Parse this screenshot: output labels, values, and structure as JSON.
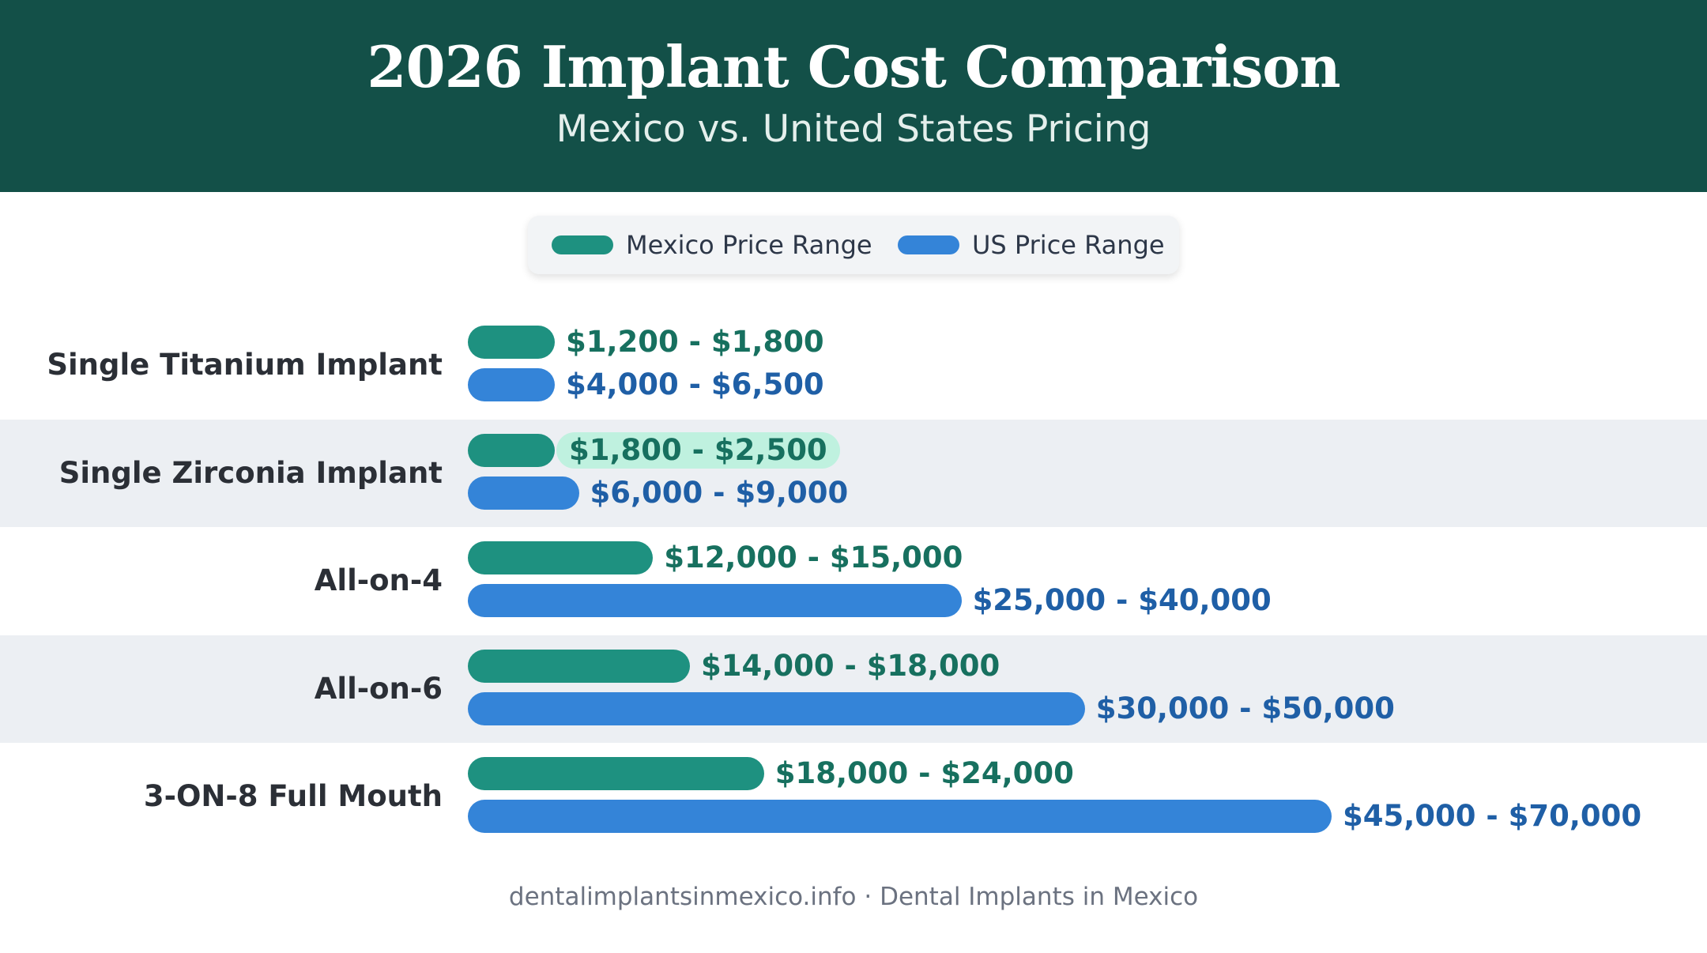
{
  "header": {
    "title": "2026 Implant Cost Comparison",
    "subtitle": "Mexico vs. United States Pricing"
  },
  "legend": {
    "mexico": "Mexico Price Range",
    "us": "US Price Range",
    "placement": "top-center"
  },
  "colors": {
    "header_bg": "#135048",
    "mexico": "#1e9180",
    "us": "#3484d8",
    "mexico_text": "#17705f",
    "us_text": "#1f5fa6",
    "highlight_bg": "#bff1df",
    "band": "#eceff3"
  },
  "chart_data": {
    "type": "bar",
    "orientation": "horizontal",
    "title": "2026 Implant Cost Comparison",
    "subtitle": "Mexico vs. United States Pricing",
    "categories": [
      "Single Titanium Implant",
      "Single Zirconia Implant",
      "All-on-4",
      "All-on-6",
      "3-ON-8 Full Mouth"
    ],
    "series": [
      {
        "name": "Mexico Price Range",
        "ranges": [
          [
            1200,
            1800
          ],
          [
            1800,
            2500
          ],
          [
            12000,
            15000
          ],
          [
            14000,
            18000
          ],
          [
            18000,
            24000
          ]
        ],
        "labels": [
          "$1,200 - $1,800",
          "$1,800 - $2,500",
          "$12,000 - $15,000",
          "$14,000 - $18,000",
          "$18,000 - $24,000"
        ]
      },
      {
        "name": "US Price Range",
        "ranges": [
          [
            4000,
            6500
          ],
          [
            6000,
            9000
          ],
          [
            25000,
            40000
          ],
          [
            30000,
            50000
          ],
          [
            45000,
            70000
          ]
        ],
        "labels": [
          "$4,000 - $6,500",
          "$6,000 - $9,000",
          "$25,000 - $40,000",
          "$30,000 - $50,000",
          "$45,000 - $70,000"
        ]
      }
    ],
    "highlight": {
      "series": 0,
      "index": 1
    },
    "grid": false
  },
  "footer": "dentalimplantsinmexico.info · Dental Implants in Mexico"
}
